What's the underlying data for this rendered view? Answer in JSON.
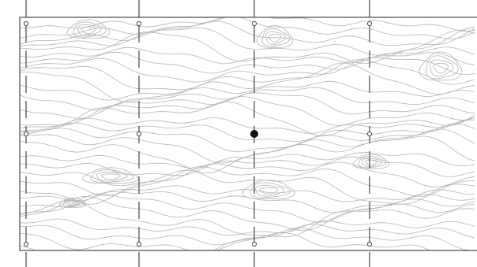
{
  "diagram": {
    "kind": "survey-grid-over-contour-map",
    "columns": 4,
    "rows": 3,
    "grid_style": "dashed",
    "selected_node": {
      "column": 3,
      "row": 2
    },
    "colors": {
      "background": "#ffffff",
      "frame": "#222222",
      "contour": "#b4b4b4",
      "grid_line": "#555555",
      "node_fill": "#ffffff",
      "node_stroke": "#444444",
      "selected_fill": "#111111"
    }
  }
}
